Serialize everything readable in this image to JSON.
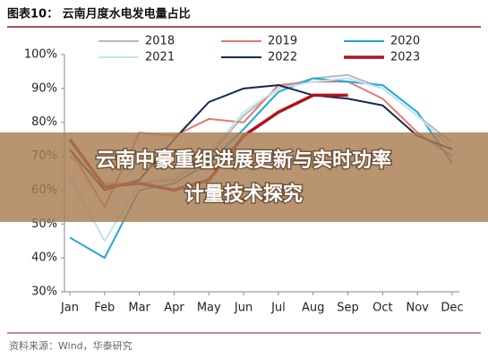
{
  "chart_data": {
    "type": "line",
    "title": "图表10： 云南月度水电发电量占比",
    "categories": [
      "Jan",
      "Feb",
      "Mar",
      "Apr",
      "May",
      "Jun",
      "Jul",
      "Aug",
      "Sep",
      "Oct",
      "Nov",
      "Dec"
    ],
    "series": [
      {
        "name": "2018",
        "color": "#b9b9b9",
        "values": [
          70,
          62,
          62,
          63,
          70,
          82,
          90,
          93,
          94,
          90,
          82,
          74
        ]
      },
      {
        "name": "2019",
        "color": "#e07b70",
        "values": [
          72,
          55,
          77,
          76,
          81,
          80,
          91,
          92,
          92,
          87,
          77,
          70
        ]
      },
      {
        "name": "2020",
        "color": "#22a7d0",
        "values": [
          46,
          40,
          60,
          62,
          68,
          78,
          89,
          93,
          92,
          91,
          83,
          68
        ]
      },
      {
        "name": "2021",
        "color": "#bfe3f2",
        "values": [
          64,
          45,
          62,
          64,
          71,
          83,
          90,
          92,
          93,
          90,
          82,
          72
        ]
      },
      {
        "name": "2022",
        "color": "#13284f",
        "values": [
          72,
          60,
          63,
          75,
          86,
          90,
          91,
          88,
          87,
          85,
          76,
          72
        ]
      },
      {
        "name": "2023",
        "color": "#b2121b",
        "values": [
          75,
          61,
          62,
          60,
          63,
          76,
          83,
          88,
          88,
          null,
          null,
          null
        ]
      }
    ],
    "ylim": [
      30,
      100
    ],
    "yticks": [
      {
        "value": 30,
        "label": "30%"
      },
      {
        "value": 40,
        "label": "40%"
      },
      {
        "value": 50,
        "label": "50%"
      },
      {
        "value": 60,
        "label": "60%"
      },
      {
        "value": 70,
        "label": "70%"
      },
      {
        "value": 80,
        "label": "80%"
      },
      {
        "value": 90,
        "label": "90%"
      },
      {
        "value": 100,
        "label": "100%"
      }
    ],
    "source": "资料来源：Wind，华泰研究"
  },
  "overlay": {
    "lines": [
      "云南中豪重组进展更新与实时功率",
      "计量技术探究"
    ]
  }
}
